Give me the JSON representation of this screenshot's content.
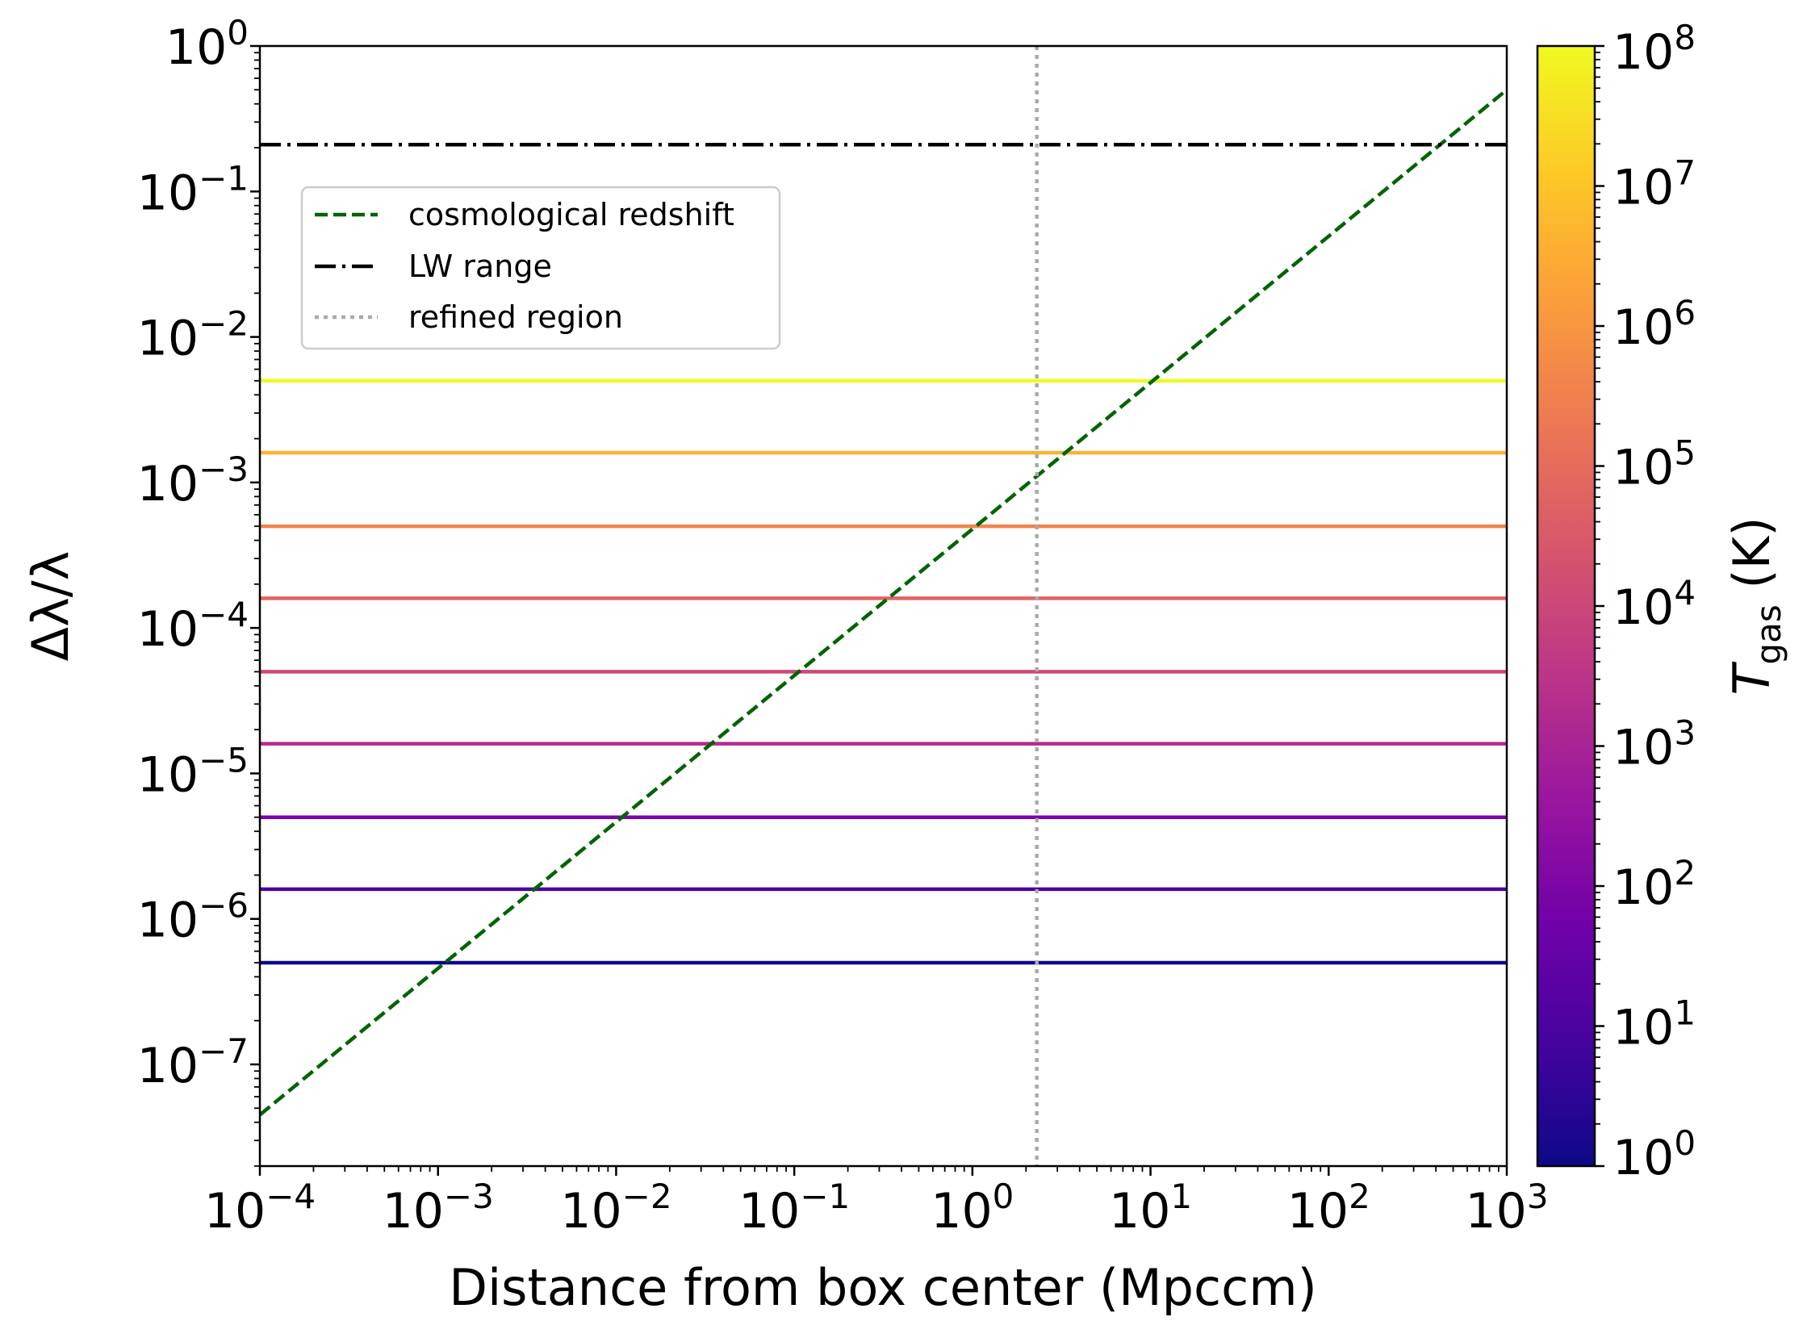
{
  "chart_data": {
    "type": "line",
    "xlabel": "Distance from box center (Mpccm)",
    "ylabel": "Δλ/λ",
    "xscale": "log",
    "yscale": "log",
    "xlim": [
      0.0001,
      1000
    ],
    "ylim": [
      2e-08,
      1
    ],
    "x_ticks": [
      {
        "base": "10",
        "exp": "−4",
        "value": 0.0001
      },
      {
        "base": "10",
        "exp": "−3",
        "value": 0.001
      },
      {
        "base": "10",
        "exp": "−2",
        "value": 0.01
      },
      {
        "base": "10",
        "exp": "−1",
        "value": 0.1
      },
      {
        "base": "10",
        "exp": "0",
        "value": 1
      },
      {
        "base": "10",
        "exp": "1",
        "value": 10
      },
      {
        "base": "10",
        "exp": "2",
        "value": 100
      },
      {
        "base": "10",
        "exp": "3",
        "value": 1000
      }
    ],
    "y_ticks": [
      {
        "base": "10",
        "exp": "−7",
        "value": 1e-07
      },
      {
        "base": "10",
        "exp": "−6",
        "value": 1e-06
      },
      {
        "base": "10",
        "exp": "−5",
        "value": 1e-05
      },
      {
        "base": "10",
        "exp": "−4",
        "value": 0.0001
      },
      {
        "base": "10",
        "exp": "−3",
        "value": 0.001
      },
      {
        "base": "10",
        "exp": "−2",
        "value": 0.01
      },
      {
        "base": "10",
        "exp": "−1",
        "value": 0.1
      },
      {
        "base": "10",
        "exp": "0",
        "value": 1
      }
    ],
    "grid": false,
    "legend_position": "upper-left",
    "series": [
      {
        "name": "cosmological redshift",
        "style": "dashed",
        "color": "#006400",
        "x": [
          0.0001,
          1000
        ],
        "y": [
          4.5e-08,
          0.5
        ]
      },
      {
        "name": "LW range",
        "style": "dashdot",
        "color": "#000000",
        "x": [
          0.0001,
          1000
        ],
        "y": [
          0.21,
          0.21
        ]
      },
      {
        "name": "refined region",
        "style": "dotted",
        "color": "#aaaaaa",
        "orientation": "vertical",
        "x_value": 2.3
      }
    ],
    "thermal_lines": {
      "x_range": [
        0.0001,
        1000
      ],
      "lines": [
        {
          "T": 1,
          "y": 5e-07,
          "color": "#0d0887"
        },
        {
          "T": 10,
          "y": 1.6e-06,
          "color": "#4c02a1"
        },
        {
          "T": 100,
          "y": 5e-06,
          "color": "#7e03a8"
        },
        {
          "T": 1000,
          "y": 1.6e-05,
          "color": "#b12a90"
        },
        {
          "T": 10000,
          "y": 5e-05,
          "color": "#cc4778"
        },
        {
          "T": 100000,
          "y": 0.00016,
          "color": "#e16462"
        },
        {
          "T": 1000000,
          "y": 0.0005,
          "color": "#f2844b"
        },
        {
          "T": 10000000,
          "y": 0.0016,
          "color": "#fbb32f"
        },
        {
          "T": 100000000,
          "y": 0.005,
          "color": "#f0f921"
        }
      ]
    },
    "colorbar": {
      "label_main": "T",
      "label_sub": "gas",
      "label_unit": " (K)",
      "scale": "log",
      "range": [
        1,
        100000000
      ],
      "colormap": "plasma",
      "stops": [
        "#0d0887",
        "#46039f",
        "#7201a8",
        "#9c179e",
        "#bd3786",
        "#d8576b",
        "#ed7953",
        "#fb9f3a",
        "#fdca26",
        "#f0f921"
      ],
      "ticks": [
        {
          "base": "10",
          "exp": "0",
          "value": 1
        },
        {
          "base": "10",
          "exp": "1",
          "value": 10
        },
        {
          "base": "10",
          "exp": "2",
          "value": 100
        },
        {
          "base": "10",
          "exp": "3",
          "value": 1000
        },
        {
          "base": "10",
          "exp": "4",
          "value": 10000
        },
        {
          "base": "10",
          "exp": "5",
          "value": 100000
        },
        {
          "base": "10",
          "exp": "6",
          "value": 1000000
        },
        {
          "base": "10",
          "exp": "7",
          "value": 10000000
        },
        {
          "base": "10",
          "exp": "8",
          "value": 100000000
        }
      ]
    }
  }
}
